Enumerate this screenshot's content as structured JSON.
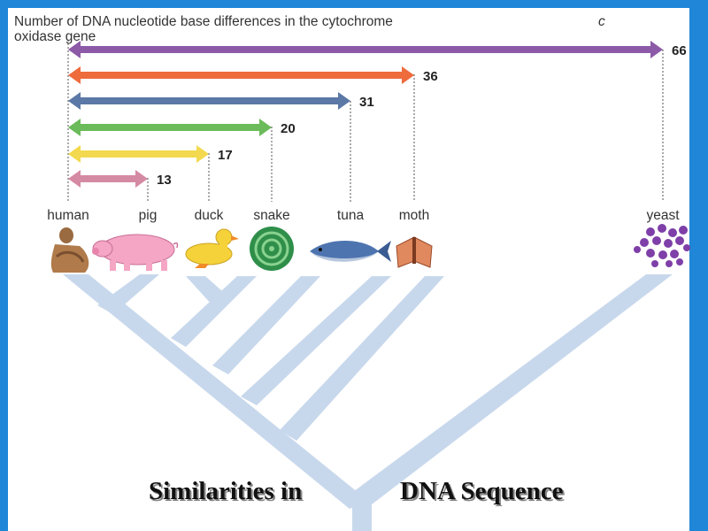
{
  "diagram": {
    "title_line1": "Number of DNA nucleotide base differences in the cytochrome",
    "title_c": "c",
    "title_line2": "oxidase gene",
    "comparisons": [
      {
        "organism": "pig",
        "differences": 13,
        "color": "#d58aa3"
      },
      {
        "organism": "duck",
        "differences": 17,
        "color": "#f3d94f"
      },
      {
        "organism": "snake",
        "differences": 20,
        "color": "#6bbb5a"
      },
      {
        "organism": "tuna",
        "differences": 31,
        "color": "#5b78a6"
      },
      {
        "organism": "moth",
        "differences": 36,
        "color": "#ee6b3c"
      },
      {
        "organism": "yeast",
        "differences": 66,
        "color": "#8d5aa8"
      }
    ],
    "organisms": [
      "human",
      "pig",
      "duck",
      "snake",
      "tuna",
      "moth",
      "yeast"
    ],
    "caption_part1": "Similarities in",
    "caption_part2": "DNA Sequence"
  },
  "colors": {
    "background_border": "#1f86d8",
    "panel": "#ffffff",
    "tree": "#c8d8ec"
  }
}
